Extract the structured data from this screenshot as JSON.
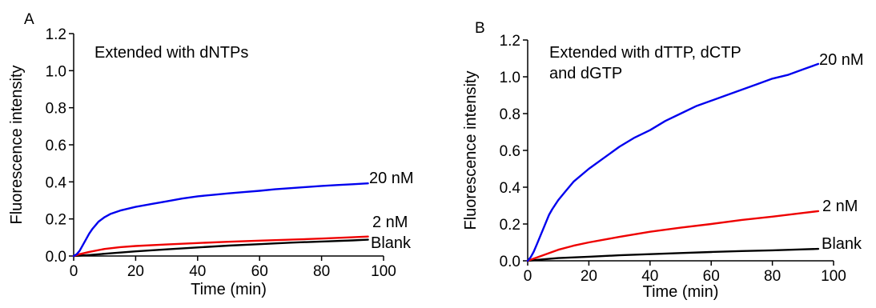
{
  "chart_data": [
    {
      "panel": "A",
      "type": "line",
      "annotation": [
        "Extended with dNTPs"
      ],
      "xlabel": "Time (min)",
      "ylabel": "Fluorescence intensity",
      "xlim": [
        0,
        100
      ],
      "ylim": [
        0,
        1.2
      ],
      "xticks": [
        "0",
        "20",
        "40",
        "60",
        "80",
        "100"
      ],
      "yticks": [
        "0.0",
        "0.2",
        "0.4",
        "0.6",
        "0.8",
        "1.0",
        "1.2"
      ],
      "grid": false,
      "series": [
        {
          "name": "20 nM",
          "color": "#0000ee",
          "x": [
            0,
            1,
            2,
            3,
            4,
            5,
            6,
            7,
            8,
            10,
            12,
            15,
            20,
            25,
            30,
            35,
            40,
            45,
            50,
            55,
            60,
            65,
            70,
            75,
            80,
            85,
            90,
            95
          ],
          "y": [
            0.0,
            0.01,
            0.03,
            0.06,
            0.09,
            0.12,
            0.145,
            0.165,
            0.185,
            0.21,
            0.228,
            0.245,
            0.265,
            0.28,
            0.295,
            0.31,
            0.322,
            0.33,
            0.338,
            0.345,
            0.352,
            0.36,
            0.366,
            0.372,
            0.378,
            0.383,
            0.387,
            0.392
          ]
        },
        {
          "name": "2 nM",
          "color": "#ee0000",
          "x": [
            0,
            2,
            5,
            10,
            15,
            20,
            30,
            40,
            50,
            60,
            70,
            80,
            90,
            95
          ],
          "y": [
            0.0,
            0.01,
            0.022,
            0.038,
            0.048,
            0.054,
            0.062,
            0.07,
            0.077,
            0.083,
            0.088,
            0.094,
            0.101,
            0.105
          ]
        },
        {
          "name": "Blank",
          "color": "#000000",
          "x": [
            0,
            5,
            10,
            20,
            30,
            40,
            50,
            60,
            70,
            80,
            90,
            95
          ],
          "y": [
            0.0,
            0.005,
            0.012,
            0.025,
            0.036,
            0.046,
            0.056,
            0.064,
            0.072,
            0.078,
            0.084,
            0.088
          ]
        }
      ]
    },
    {
      "panel": "B",
      "type": "line",
      "annotation": [
        "Extended with dTTP, dCTP",
        "and dGTP"
      ],
      "xlabel": "Time (min)",
      "ylabel": "Fluorescence intensity",
      "xlim": [
        0,
        100
      ],
      "ylim": [
        0,
        1.2
      ],
      "xticks": [
        "0",
        "20",
        "40",
        "60",
        "80",
        "100"
      ],
      "yticks": [
        "0.0",
        "0.2",
        "0.4",
        "0.6",
        "0.8",
        "1.0",
        "1.2"
      ],
      "grid": false,
      "series": [
        {
          "name": "20 nM",
          "color": "#0000ee",
          "x": [
            0,
            1,
            2,
            3,
            4,
            5,
            6,
            7,
            8,
            10,
            12,
            15,
            20,
            25,
            30,
            35,
            40,
            45,
            50,
            55,
            60,
            65,
            70,
            75,
            80,
            85,
            90,
            95
          ],
          "y": [
            0.0,
            0.02,
            0.05,
            0.09,
            0.13,
            0.17,
            0.21,
            0.25,
            0.28,
            0.33,
            0.37,
            0.43,
            0.5,
            0.56,
            0.62,
            0.67,
            0.71,
            0.76,
            0.8,
            0.84,
            0.87,
            0.9,
            0.93,
            0.96,
            0.99,
            1.01,
            1.04,
            1.07
          ]
        },
        {
          "name": "2 nM",
          "color": "#ee0000",
          "x": [
            0,
            2,
            5,
            10,
            15,
            20,
            30,
            40,
            50,
            60,
            70,
            80,
            90,
            95
          ],
          "y": [
            0.0,
            0.012,
            0.03,
            0.06,
            0.082,
            0.1,
            0.13,
            0.158,
            0.18,
            0.2,
            0.222,
            0.24,
            0.26,
            0.27
          ]
        },
        {
          "name": "Blank",
          "color": "#000000",
          "x": [
            0,
            5,
            10,
            20,
            30,
            40,
            50,
            60,
            70,
            80,
            90,
            95
          ],
          "y": [
            0.0,
            0.008,
            0.015,
            0.022,
            0.03,
            0.036,
            0.042,
            0.048,
            0.053,
            0.057,
            0.062,
            0.065
          ]
        }
      ]
    }
  ]
}
